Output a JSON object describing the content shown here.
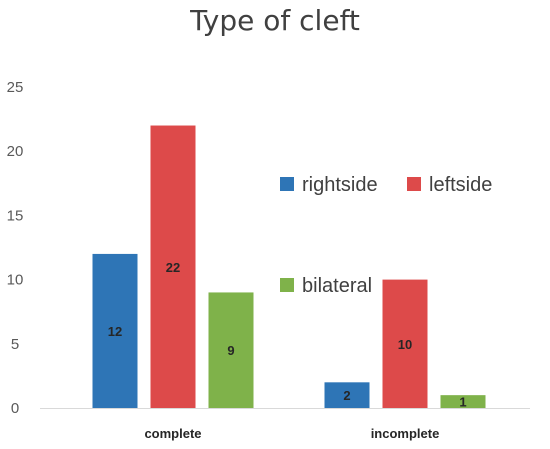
{
  "chart_data": {
    "type": "bar",
    "title": "Type of cleft",
    "categories": [
      "complete",
      "incomplete"
    ],
    "series": [
      {
        "name": "rightside",
        "color": "#2e75b6",
        "values": [
          12,
          2
        ]
      },
      {
        "name": "leftside",
        "color": "#dd4a4a",
        "values": [
          22,
          10
        ]
      },
      {
        "name": "bilateral",
        "color": "#7fb24a",
        "values": [
          9,
          1
        ]
      }
    ],
    "ylim": [
      0,
      25
    ],
    "yticks": [
      "0",
      "5",
      "10",
      "15",
      "20",
      "25"
    ],
    "xlabel": "",
    "ylabel": "",
    "grid": false,
    "legend_position": "right",
    "data_labels": true
  }
}
